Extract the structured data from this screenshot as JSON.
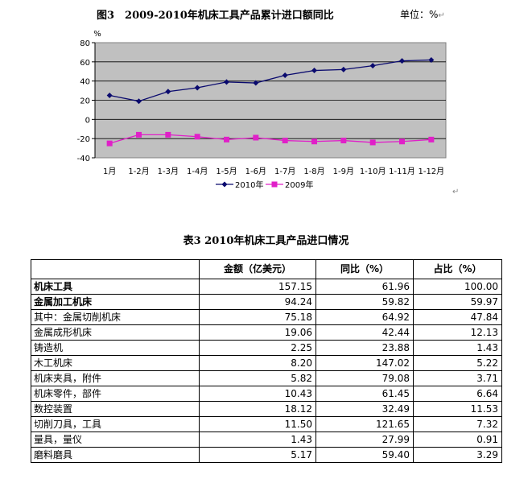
{
  "figure": {
    "title": "图3　2009-2010年机床工具产品累计进口额同比",
    "unit": "单位：%",
    "unit_mark": "↵",
    "return_mark": "↵"
  },
  "chart_data": {
    "type": "line",
    "categories": [
      "1月",
      "1-2月",
      "1-3月",
      "1-4月",
      "1-5月",
      "1-6月",
      "1-7月",
      "1-8月",
      "1-9月",
      "1-10月",
      "1-11月",
      "1-12月"
    ],
    "series": [
      {
        "name": "2010年",
        "values": [
          25,
          19,
          29,
          33,
          39,
          38,
          46,
          51,
          52,
          56,
          61,
          62
        ],
        "color": "#0a0a6e",
        "marker": "diamond"
      },
      {
        "name": "2009年",
        "values": [
          -25,
          -16,
          -16,
          -18,
          -21,
          -19,
          -22,
          -23,
          -22,
          -24,
          -23,
          -21
        ],
        "color": "#e020c8",
        "marker": "square"
      }
    ],
    "ylabel": "%",
    "ylim": [
      -40,
      80
    ],
    "yticks": [
      80,
      60,
      40,
      20,
      0,
      -20,
      -40
    ],
    "grid": true,
    "plot_background": "#c0c0c0",
    "legend_position": "bottom"
  },
  "table": {
    "title": "表3  2010年机床工具产品进口情况",
    "headers": [
      "",
      "金额（亿美元）",
      "同比（%）",
      "占比（%）"
    ],
    "rows": [
      {
        "name": "机床工具",
        "amount": "157.15",
        "yoy": "61.96",
        "share": "100.00",
        "bold": true
      },
      {
        "name": "金属加工机床",
        "amount": "94.24",
        "yoy": "59.82",
        "share": "59.97",
        "bold": true
      },
      {
        "name": "其中：金属切削机床",
        "amount": "75.18",
        "yoy": "64.92",
        "share": "47.84",
        "bold": false
      },
      {
        "name": "金属成形机床",
        "amount": "19.06",
        "yoy": "42.44",
        "share": "12.13",
        "bold": false
      },
      {
        "name": "铸造机",
        "amount": "2.25",
        "yoy": "23.88",
        "share": "1.43",
        "bold": false
      },
      {
        "name": "木工机床",
        "amount": "8.20",
        "yoy": "147.02",
        "share": "5.22",
        "bold": false
      },
      {
        "name": "机床夹具，附件",
        "amount": "5.82",
        "yoy": "79.08",
        "share": "3.71",
        "bold": false
      },
      {
        "name": "机床零件，部件",
        "amount": "10.43",
        "yoy": "61.45",
        "share": "6.64",
        "bold": false
      },
      {
        "name": "数控装置",
        "amount": "18.12",
        "yoy": "32.49",
        "share": "11.53",
        "bold": false
      },
      {
        "name": "切削刀具，工具",
        "amount": "11.50",
        "yoy": "121.65",
        "share": "7.32",
        "bold": false
      },
      {
        "name": "量具，量仪",
        "amount": "1.43",
        "yoy": "27.99",
        "share": "0.91",
        "bold": false
      },
      {
        "name": "磨料磨具",
        "amount": "5.17",
        "yoy": "59.40",
        "share": "3.29",
        "bold": false
      }
    ]
  }
}
